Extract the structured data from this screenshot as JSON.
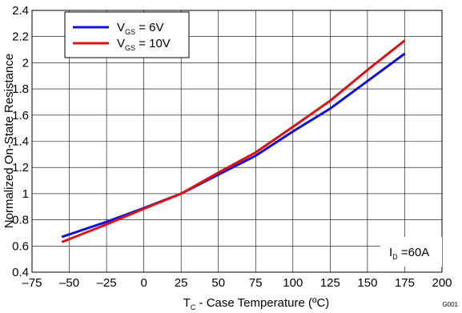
{
  "chart_data": {
    "type": "line",
    "xlabel": {
      "main": "T",
      "sub": "C",
      "rest": " - Case Temperature (ºC)"
    },
    "ylabel": "Normalized On-State Resistance",
    "xlim": [
      -75,
      200
    ],
    "ylim": [
      0.4,
      2.4
    ],
    "xticks": [
      -75,
      -50,
      -25,
      0,
      25,
      50,
      75,
      100,
      125,
      150,
      175,
      200
    ],
    "yticks": [
      0.4,
      0.6,
      0.8,
      1,
      1.2,
      1.4,
      1.6,
      1.8,
      2,
      2.2,
      2.4
    ],
    "xtick_labels": [
      "–75",
      "–50",
      "–25",
      "0",
      "25",
      "50",
      "75",
      "100",
      "125",
      "150",
      "175",
      "200"
    ],
    "ytick_labels": [
      "0.4",
      "0.6",
      "0.8",
      "1",
      "1.2",
      "1.4",
      "1.6",
      "1.8",
      "2",
      "2.2",
      "2.4"
    ],
    "grid": true,
    "legend_position": "top-left",
    "annotation": {
      "main": "I",
      "sub": "D",
      "rest": " =60A"
    },
    "figure_id": "G001",
    "series": [
      {
        "name": "V",
        "name_sub": "GS",
        "name_rest": " = 6V",
        "color": "#1010e0",
        "x": [
          -55,
          -25,
          0,
          25,
          50,
          75,
          100,
          125,
          150,
          175
        ],
        "y": [
          0.67,
          0.785,
          0.89,
          1.0,
          1.145,
          1.29,
          1.475,
          1.65,
          1.86,
          2.07
        ]
      },
      {
        "name": "V",
        "name_sub": "GS",
        "name_rest": " = 10V",
        "color": "#e01010",
        "x": [
          -55,
          -25,
          0,
          25,
          50,
          75,
          100,
          125,
          150,
          175
        ],
        "y": [
          0.63,
          0.765,
          0.885,
          1.0,
          1.16,
          1.315,
          1.51,
          1.71,
          1.945,
          2.17
        ]
      }
    ]
  }
}
